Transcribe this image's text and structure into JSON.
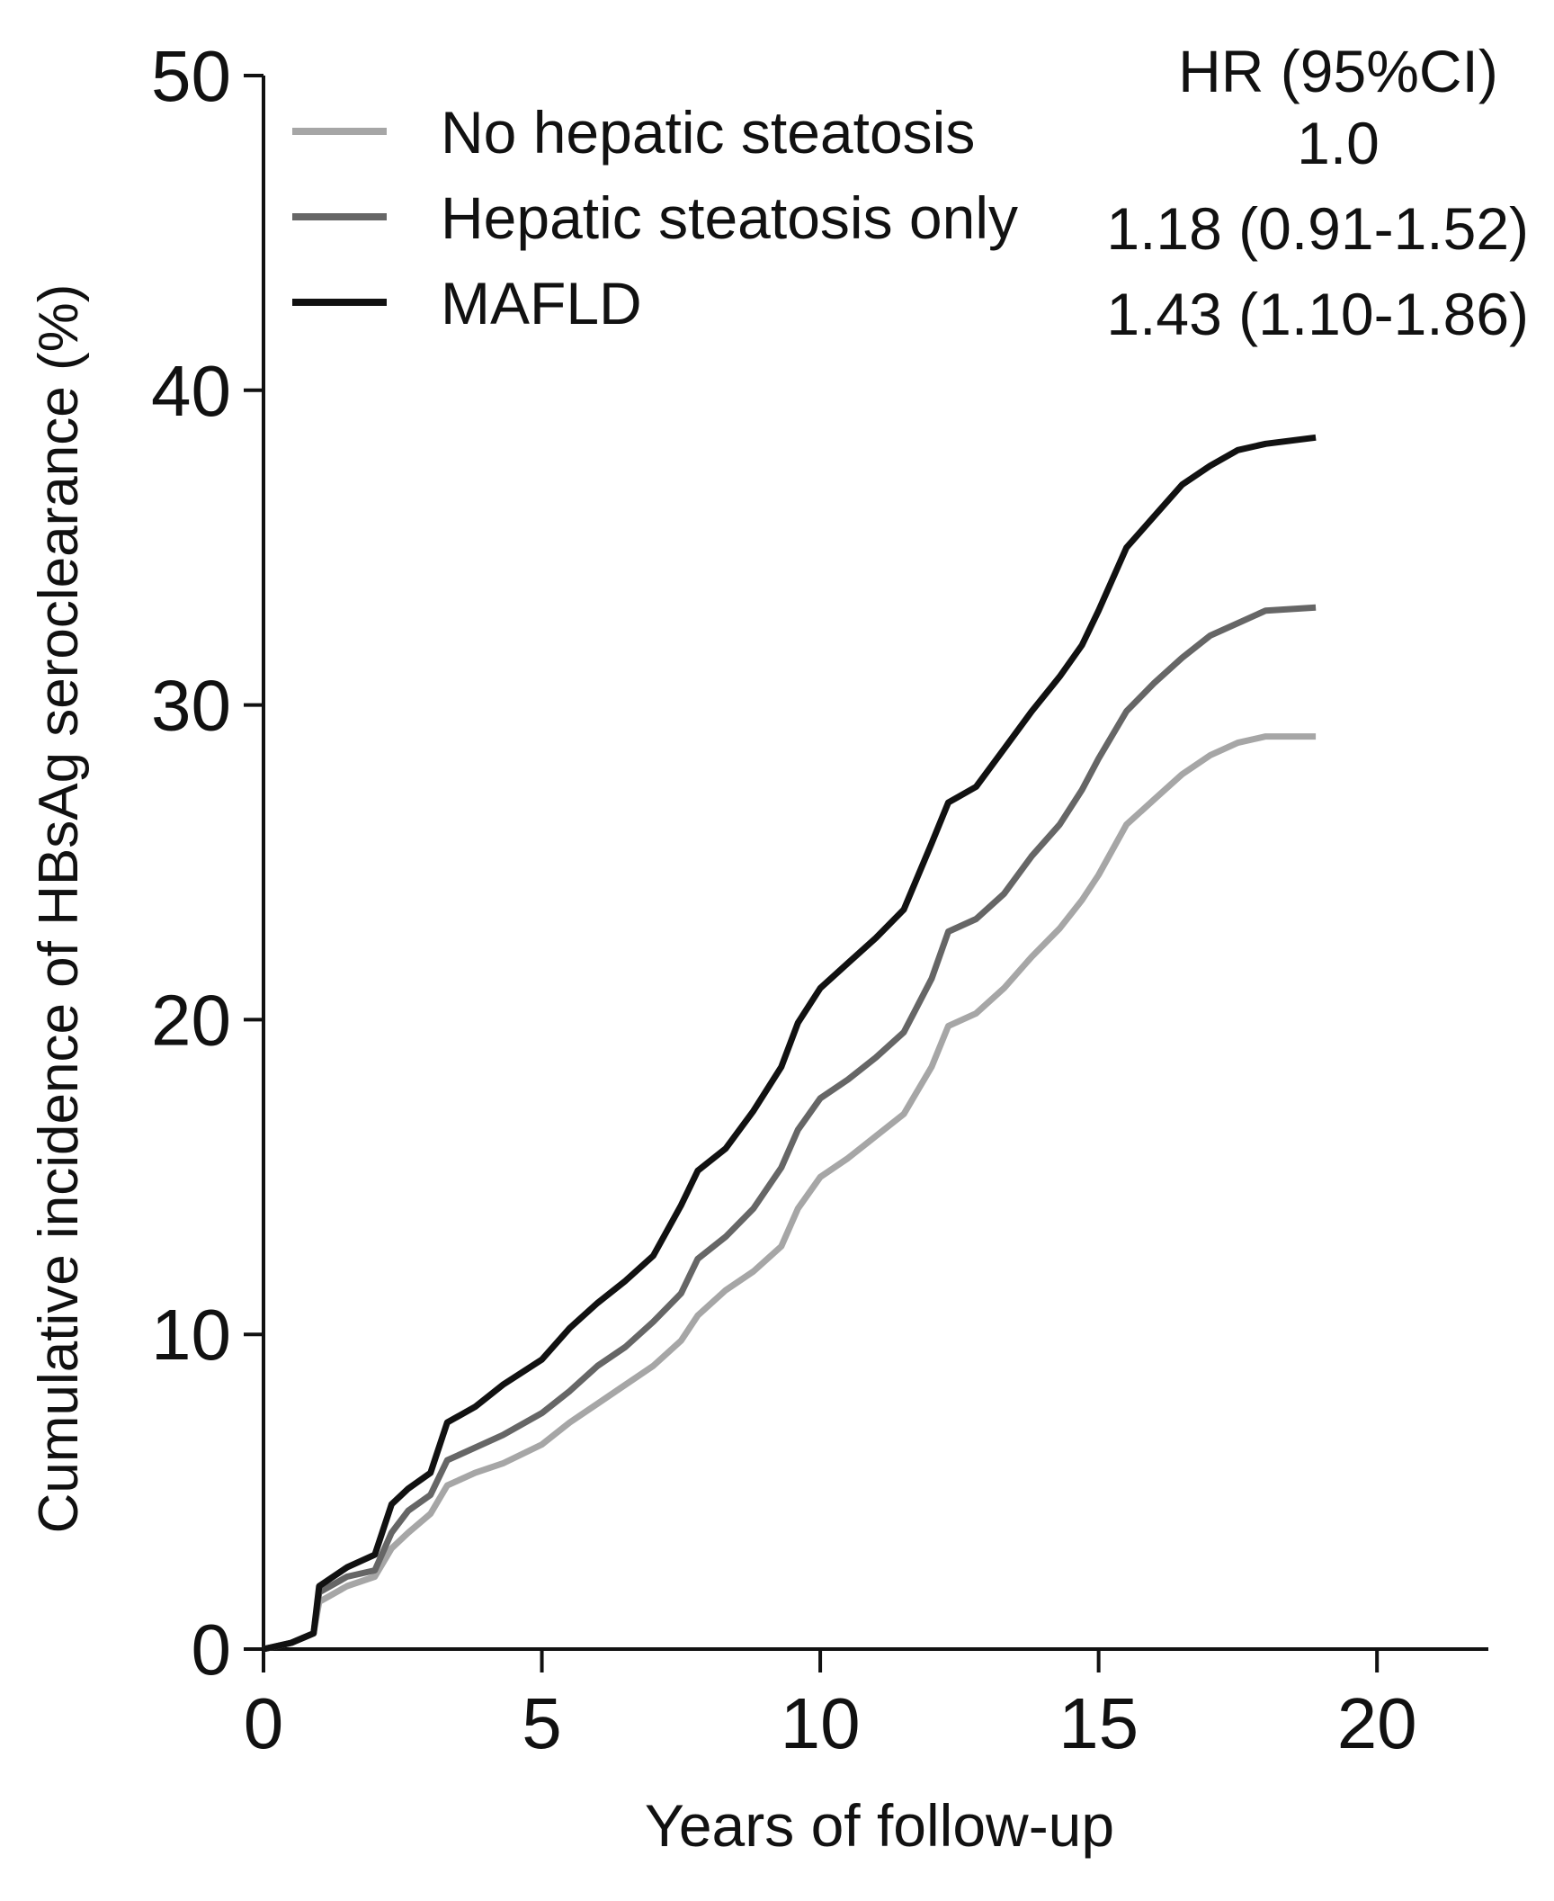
{
  "chart_data": {
    "type": "line",
    "title": "",
    "xlabel": "Years of follow-up",
    "ylabel": "Cumulative incidence of HBsAg seroclearance (%)",
    "xlim": [
      0,
      22
    ],
    "ylim": [
      0,
      50
    ],
    "xticks": [
      0,
      5,
      10,
      15,
      20
    ],
    "yticks": [
      0,
      10,
      20,
      30,
      40,
      50
    ],
    "legend_position": "top",
    "hr_header": "HR (95%CI)",
    "series": [
      {
        "name": "No hepatic steatosis",
        "hr": "1.0",
        "color": "#a6a6a6",
        "points": [
          [
            0,
            0
          ],
          [
            0.5,
            0.2
          ],
          [
            0.9,
            0.5
          ],
          [
            1.0,
            1.5
          ],
          [
            1.5,
            2.0
          ],
          [
            2.0,
            2.3
          ],
          [
            2.3,
            3.2
          ],
          [
            2.6,
            3.7
          ],
          [
            3.0,
            4.3
          ],
          [
            3.3,
            5.2
          ],
          [
            3.8,
            5.6
          ],
          [
            4.3,
            5.9
          ],
          [
            5.0,
            6.5
          ],
          [
            5.5,
            7.2
          ],
          [
            6.0,
            7.8
          ],
          [
            6.5,
            8.4
          ],
          [
            7.0,
            9.0
          ],
          [
            7.5,
            9.8
          ],
          [
            7.8,
            10.6
          ],
          [
            8.3,
            11.4
          ],
          [
            8.8,
            12.0
          ],
          [
            9.3,
            12.8
          ],
          [
            9.6,
            14.0
          ],
          [
            10.0,
            15.0
          ],
          [
            10.5,
            15.6
          ],
          [
            11.0,
            16.3
          ],
          [
            11.5,
            17.0
          ],
          [
            12.0,
            18.5
          ],
          [
            12.3,
            19.8
          ],
          [
            12.8,
            20.2
          ],
          [
            13.3,
            21.0
          ],
          [
            13.8,
            22.0
          ],
          [
            14.3,
            22.9
          ],
          [
            14.7,
            23.8
          ],
          [
            15.0,
            24.6
          ],
          [
            15.5,
            26.2
          ],
          [
            16.0,
            27.0
          ],
          [
            16.5,
            27.8
          ],
          [
            17.0,
            28.4
          ],
          [
            17.5,
            28.8
          ],
          [
            18.0,
            29.0
          ],
          [
            18.9,
            29.0
          ]
        ]
      },
      {
        "name": "Hepatic steatosis only",
        "hr": "1.18 (0.91-1.52)",
        "color": "#666666",
        "points": [
          [
            0,
            0
          ],
          [
            0.5,
            0.2
          ],
          [
            0.9,
            0.5
          ],
          [
            1.0,
            1.8
          ],
          [
            1.5,
            2.3
          ],
          [
            2.0,
            2.5
          ],
          [
            2.3,
            3.7
          ],
          [
            2.6,
            4.4
          ],
          [
            3.0,
            4.9
          ],
          [
            3.3,
            6.0
          ],
          [
            3.8,
            6.4
          ],
          [
            4.3,
            6.8
          ],
          [
            5.0,
            7.5
          ],
          [
            5.5,
            8.2
          ],
          [
            6.0,
            9.0
          ],
          [
            6.5,
            9.6
          ],
          [
            7.0,
            10.4
          ],
          [
            7.5,
            11.3
          ],
          [
            7.8,
            12.4
          ],
          [
            8.3,
            13.1
          ],
          [
            8.8,
            14.0
          ],
          [
            9.3,
            15.3
          ],
          [
            9.6,
            16.5
          ],
          [
            10.0,
            17.5
          ],
          [
            10.5,
            18.1
          ],
          [
            11.0,
            18.8
          ],
          [
            11.5,
            19.6
          ],
          [
            12.0,
            21.3
          ],
          [
            12.3,
            22.8
          ],
          [
            12.8,
            23.2
          ],
          [
            13.3,
            24.0
          ],
          [
            13.8,
            25.2
          ],
          [
            14.3,
            26.2
          ],
          [
            14.7,
            27.3
          ],
          [
            15.0,
            28.3
          ],
          [
            15.5,
            29.8
          ],
          [
            16.0,
            30.7
          ],
          [
            16.5,
            31.5
          ],
          [
            17.0,
            32.2
          ],
          [
            17.5,
            32.6
          ],
          [
            18.0,
            33.0
          ],
          [
            18.9,
            33.1
          ]
        ]
      },
      {
        "name": "MAFLD",
        "hr": "1.43 (1.10-1.86)",
        "color": "#111111",
        "points": [
          [
            0,
            0
          ],
          [
            0.5,
            0.2
          ],
          [
            0.9,
            0.5
          ],
          [
            1.0,
            2.0
          ],
          [
            1.5,
            2.6
          ],
          [
            2.0,
            3.0
          ],
          [
            2.3,
            4.6
          ],
          [
            2.6,
            5.1
          ],
          [
            3.0,
            5.6
          ],
          [
            3.3,
            7.2
          ],
          [
            3.8,
            7.7
          ],
          [
            4.3,
            8.4
          ],
          [
            5.0,
            9.2
          ],
          [
            5.5,
            10.2
          ],
          [
            6.0,
            11.0
          ],
          [
            6.5,
            11.7
          ],
          [
            7.0,
            12.5
          ],
          [
            7.5,
            14.1
          ],
          [
            7.8,
            15.2
          ],
          [
            8.3,
            15.9
          ],
          [
            8.8,
            17.1
          ],
          [
            9.3,
            18.5
          ],
          [
            9.6,
            19.9
          ],
          [
            10.0,
            21.0
          ],
          [
            10.5,
            21.8
          ],
          [
            11.0,
            22.6
          ],
          [
            11.5,
            23.5
          ],
          [
            12.0,
            25.6
          ],
          [
            12.3,
            26.9
          ],
          [
            12.8,
            27.4
          ],
          [
            13.3,
            28.6
          ],
          [
            13.8,
            29.8
          ],
          [
            14.3,
            30.9
          ],
          [
            14.7,
            31.9
          ],
          [
            15.0,
            33.0
          ],
          [
            15.5,
            35.0
          ],
          [
            16.0,
            36.0
          ],
          [
            16.5,
            37.0
          ],
          [
            17.0,
            37.6
          ],
          [
            17.5,
            38.1
          ],
          [
            18.0,
            38.3
          ],
          [
            18.9,
            38.5
          ]
        ]
      }
    ]
  }
}
